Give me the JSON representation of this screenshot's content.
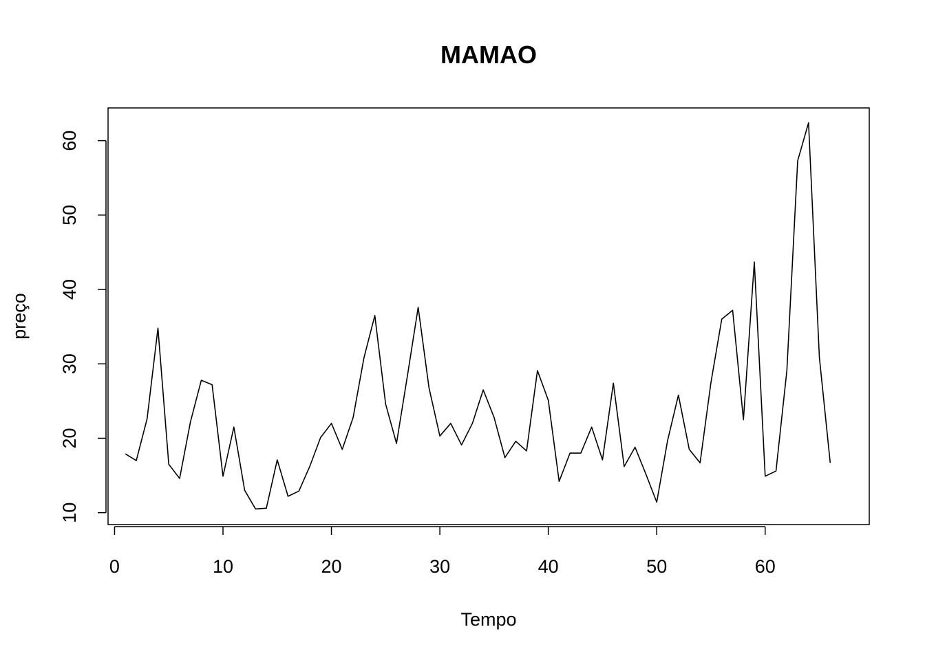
{
  "chart_data": {
    "type": "line",
    "title": "MAMAO",
    "xlabel": "Tempo",
    "ylabel": "preço",
    "xlim": [
      -0.6,
      69.6
    ],
    "ylim": [
      8.4,
      64.4
    ],
    "xticks": [
      0,
      10,
      20,
      30,
      40,
      50,
      60
    ],
    "yticks": [
      10,
      20,
      30,
      40,
      50,
      60
    ],
    "grid": false,
    "line_color": "#000000",
    "series": [
      {
        "x": [
          1,
          2,
          3,
          4,
          5,
          6,
          7,
          8,
          9,
          10,
          11,
          12,
          13,
          14,
          15,
          16,
          17,
          18,
          19,
          20,
          21,
          22,
          23,
          24,
          25,
          26,
          27,
          28,
          29,
          30,
          31,
          32,
          33,
          34,
          35,
          36,
          37,
          38,
          39,
          40,
          41,
          42,
          43,
          44,
          45,
          46,
          47,
          48,
          49,
          50,
          51,
          52,
          53,
          54,
          55,
          56,
          57,
          58,
          59,
          60,
          61,
          62,
          63,
          64,
          65,
          66
        ],
        "values": [
          17.9,
          17.0,
          22.6,
          34.8,
          16.5,
          14.6,
          22.2,
          27.8,
          27.2,
          14.9,
          21.5,
          13.0,
          10.5,
          10.6,
          17.1,
          12.2,
          12.9,
          16.2,
          20.1,
          22.0,
          18.5,
          22.8,
          30.8,
          36.5,
          24.6,
          19.3,
          28.3,
          37.6,
          26.8,
          20.3,
          22.0,
          19.1,
          22.0,
          26.5,
          22.8,
          17.4,
          19.6,
          18.3,
          29.1,
          25.1,
          14.2,
          18.0,
          18.0,
          21.5,
          17.1,
          27.4,
          16.2,
          18.8,
          15.2,
          11.4,
          19.7,
          25.8,
          18.5,
          16.7,
          27.5,
          36.0,
          37.2,
          22.5,
          43.7,
          14.9,
          15.6,
          29.1,
          57.3,
          62.4,
          30.9,
          16.7
        ]
      }
    ]
  }
}
